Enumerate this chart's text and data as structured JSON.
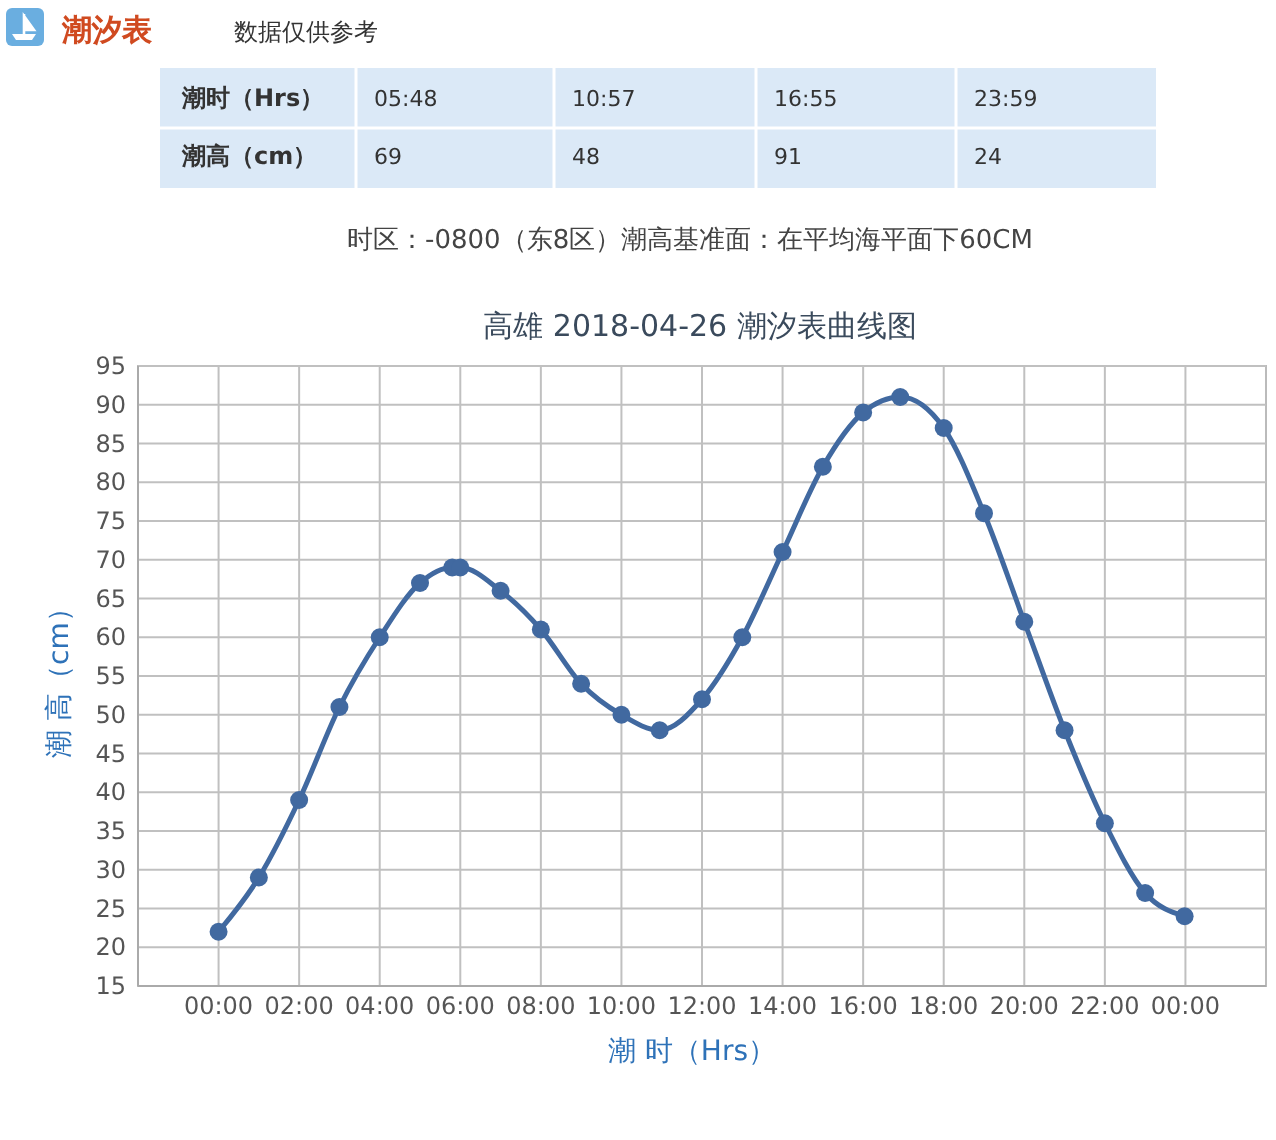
{
  "chart_data": {
    "type": "line",
    "title": "高雄 2018-04-26 潮汐表曲线图",
    "xlabel": "潮 时（Hrs）",
    "ylabel": "潮 高（cm）",
    "annotations": [
      "潮汐表",
      "数据仅供参考",
      "潮时（Hrs）",
      "05:48",
      "10:57",
      "16:55",
      "23:59",
      "潮高（cm）",
      "69",
      "48",
      "91",
      "24",
      "时区：-0800（东8区）潮高基准面：在平均海平面下60CM"
    ],
    "series": [
      {
        "color": "#4169a0",
        "x": [
          0,
          1,
          2,
          3,
          4,
          5,
          5.8,
          6,
          7,
          8,
          9,
          10,
          10.95,
          12,
          13,
          14,
          15,
          16,
          16.92,
          18,
          19,
          20,
          21,
          22,
          23,
          23.98
        ],
        "values": [
          22,
          29,
          39,
          51,
          60,
          67,
          69,
          69,
          66,
          61,
          54,
          50,
          48,
          52,
          60,
          71,
          82,
          89,
          91,
          87,
          76,
          62,
          48,
          36,
          27,
          24
        ]
      }
    ],
    "xlim": [
      -2,
      26
    ],
    "xticks": [
      {
        "value": 0,
        "label": "00:00"
      },
      {
        "value": 2,
        "label": "02:00"
      },
      {
        "value": 4,
        "label": "04:00"
      },
      {
        "value": 6,
        "label": "06:00"
      },
      {
        "value": 8,
        "label": "08:00"
      },
      {
        "value": 10,
        "label": "10:00"
      },
      {
        "value": 12,
        "label": "12:00"
      },
      {
        "value": 14,
        "label": "14:00"
      },
      {
        "value": 16,
        "label": "16:00"
      },
      {
        "value": 18,
        "label": "18:00"
      },
      {
        "value": 20,
        "label": "20:00"
      },
      {
        "value": 22,
        "label": "22:00"
      },
      {
        "value": 24,
        "label": "00:00"
      }
    ],
    "ylim": [
      15,
      95
    ],
    "yticks": [
      15,
      20,
      25,
      30,
      35,
      40,
      45,
      50,
      55,
      60,
      65,
      70,
      75,
      80,
      85,
      90,
      95
    ],
    "grid": true,
    "marker": "circle",
    "line_style": "solid"
  }
}
